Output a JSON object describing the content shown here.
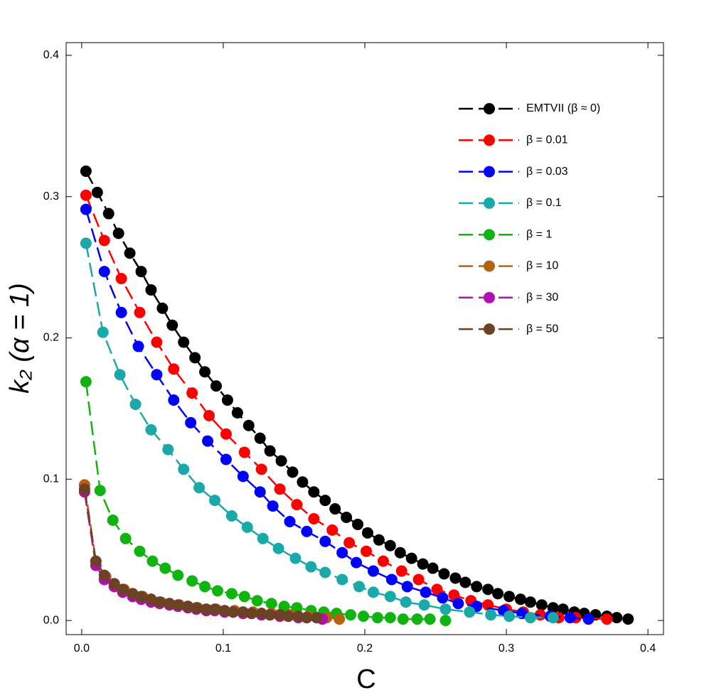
{
  "chart_data": {
    "type": "line",
    "xlabel": "C",
    "ylabel": "k₂ (α = 1)",
    "xlim": [
      -0.011,
      0.411
    ],
    "ylim": [
      -0.01,
      0.409
    ],
    "xticks": [
      {
        "value": 0,
        "label": "0.0"
      },
      0.1,
      0.2,
      0.3,
      0.4
    ],
    "yticks": [
      {
        "value": 0,
        "label": "0.0"
      },
      0.1,
      0.2,
      0.3,
      0.4
    ],
    "legend": "upper right",
    "series": [
      {
        "name": "EMTVII (β ≈ 0)",
        "color": "#000000",
        "x": [
          0.003,
          0.011,
          0.019,
          0.026,
          0.034,
          0.042,
          0.049,
          0.057,
          0.064,
          0.072,
          0.08,
          0.087,
          0.095,
          0.103,
          0.11,
          0.118,
          0.126,
          0.133,
          0.141,
          0.149,
          0.156,
          0.164,
          0.172,
          0.179,
          0.187,
          0.195,
          0.202,
          0.21,
          0.218,
          0.225,
          0.233,
          0.241,
          0.248,
          0.256,
          0.264,
          0.271,
          0.279,
          0.287,
          0.294,
          0.302,
          0.31,
          0.317,
          0.325,
          0.333,
          0.34,
          0.348,
          0.355,
          0.363,
          0.371,
          0.378,
          0.386
        ],
        "values": [
          0.318,
          0.303,
          0.288,
          0.274,
          0.26,
          0.247,
          0.234,
          0.221,
          0.209,
          0.197,
          0.186,
          0.176,
          0.166,
          0.156,
          0.147,
          0.138,
          0.129,
          0.12,
          0.113,
          0.105,
          0.098,
          0.091,
          0.085,
          0.079,
          0.073,
          0.068,
          0.062,
          0.057,
          0.053,
          0.048,
          0.044,
          0.04,
          0.037,
          0.033,
          0.03,
          0.027,
          0.024,
          0.022,
          0.019,
          0.017,
          0.015,
          0.013,
          0.011,
          0.009,
          0.008,
          0.006,
          0.005,
          0.004,
          0.003,
          0.002,
          0.001
        ]
      },
      {
        "name": "β = 0.01",
        "color": "#ff0000",
        "x": [
          0.003,
          0.016,
          0.028,
          0.041,
          0.053,
          0.065,
          0.078,
          0.09,
          0.102,
          0.115,
          0.127,
          0.14,
          0.152,
          0.164,
          0.177,
          0.189,
          0.201,
          0.213,
          0.226,
          0.238,
          0.251,
          0.263,
          0.275,
          0.287,
          0.3,
          0.312,
          0.324,
          0.337,
          0.349,
          0.371
        ],
        "values": [
          0.301,
          0.269,
          0.242,
          0.218,
          0.197,
          0.178,
          0.161,
          0.145,
          0.132,
          0.119,
          0.107,
          0.093,
          0.082,
          0.072,
          0.064,
          0.055,
          0.049,
          0.042,
          0.035,
          0.029,
          0.022,
          0.018,
          0.014,
          0.011,
          0.008,
          0.006,
          0.004,
          0.002,
          0.002,
          0.001
        ]
      },
      {
        "name": "β = 0.03",
        "color": "#0000ff",
        "x": [
          0.003,
          0.016,
          0.028,
          0.04,
          0.053,
          0.065,
          0.077,
          0.089,
          0.102,
          0.114,
          0.126,
          0.135,
          0.147,
          0.159,
          0.172,
          0.184,
          0.194,
          0.206,
          0.219,
          0.23,
          0.243,
          0.255,
          0.266,
          0.279,
          0.298,
          0.311,
          0.331,
          0.345,
          0.358
        ],
        "values": [
          0.291,
          0.247,
          0.218,
          0.194,
          0.174,
          0.156,
          0.14,
          0.127,
          0.114,
          0.102,
          0.091,
          0.081,
          0.07,
          0.063,
          0.056,
          0.048,
          0.041,
          0.035,
          0.029,
          0.024,
          0.02,
          0.016,
          0.012,
          0.01,
          0.007,
          0.005,
          0.003,
          0.002,
          0.001
        ]
      },
      {
        "name": "β = 0.1",
        "color": "#1aa8a8",
        "x": [
          0.003,
          0.015,
          0.027,
          0.038,
          0.049,
          0.061,
          0.072,
          0.083,
          0.094,
          0.106,
          0.117,
          0.128,
          0.139,
          0.151,
          0.162,
          0.172,
          0.184,
          0.196,
          0.206,
          0.218,
          0.229,
          0.242,
          0.257,
          0.274,
          0.289,
          0.302,
          0.317,
          0.333
        ],
        "values": [
          0.267,
          0.204,
          0.174,
          0.153,
          0.135,
          0.121,
          0.107,
          0.094,
          0.085,
          0.074,
          0.066,
          0.058,
          0.051,
          0.044,
          0.038,
          0.034,
          0.029,
          0.024,
          0.02,
          0.017,
          0.013,
          0.011,
          0.008,
          0.006,
          0.004,
          0.003,
          0.002,
          0.002
        ]
      },
      {
        "name": "β = 1",
        "color": "#11b311",
        "x": [
          0.003,
          0.013,
          0.022,
          0.031,
          0.041,
          0.05,
          0.059,
          0.068,
          0.078,
          0.087,
          0.096,
          0.106,
          0.115,
          0.124,
          0.134,
          0.143,
          0.152,
          0.162,
          0.171,
          0.18,
          0.19,
          0.199,
          0.209,
          0.218,
          0.227,
          0.237,
          0.246,
          0.257
        ],
        "values": [
          0.169,
          0.092,
          0.071,
          0.058,
          0.049,
          0.042,
          0.037,
          0.032,
          0.028,
          0.024,
          0.021,
          0.019,
          0.017,
          0.014,
          0.012,
          0.01,
          0.009,
          0.007,
          0.006,
          0.005,
          0.004,
          0.003,
          0.002,
          0.002,
          0.001,
          0.001,
          0.001,
          0.0
        ]
      },
      {
        "name": "β = 10",
        "color": "#b5620e",
        "x": [
          0.002,
          0.01,
          0.017,
          0.023,
          0.03,
          0.036,
          0.043,
          0.049,
          0.056,
          0.062,
          0.069,
          0.075,
          0.082,
          0.088,
          0.095,
          0.101,
          0.108,
          0.114,
          0.121,
          0.127,
          0.134,
          0.14,
          0.147,
          0.153,
          0.16,
          0.166,
          0.173,
          0.182
        ],
        "values": [
          0.096,
          0.042,
          0.031,
          0.026,
          0.022,
          0.019,
          0.017,
          0.015,
          0.013,
          0.012,
          0.011,
          0.01,
          0.009,
          0.008,
          0.008,
          0.007,
          0.007,
          0.006,
          0.006,
          0.005,
          0.005,
          0.004,
          0.004,
          0.003,
          0.003,
          0.002,
          0.002,
          0.001
        ]
      },
      {
        "name": "β = 30",
        "color": "#b010b0",
        "x": [
          0.002,
          0.01,
          0.016,
          0.023,
          0.029,
          0.036,
          0.042,
          0.049,
          0.055,
          0.062,
          0.068,
          0.075,
          0.081,
          0.088,
          0.094,
          0.101,
          0.107,
          0.114,
          0.12,
          0.127,
          0.133,
          0.14,
          0.146,
          0.153,
          0.159,
          0.166,
          0.17
        ],
        "values": [
          0.091,
          0.039,
          0.029,
          0.024,
          0.02,
          0.017,
          0.015,
          0.013,
          0.012,
          0.011,
          0.01,
          0.009,
          0.008,
          0.007,
          0.007,
          0.006,
          0.006,
          0.005,
          0.005,
          0.004,
          0.004,
          0.003,
          0.003,
          0.002,
          0.002,
          0.002,
          0.001
        ]
      },
      {
        "name": "β = 50",
        "color": "#6b4226",
        "x": [
          0.002,
          0.01,
          0.016,
          0.023,
          0.029,
          0.036,
          0.042,
          0.049,
          0.055,
          0.062,
          0.068,
          0.075,
          0.081,
          0.088,
          0.094,
          0.101,
          0.107,
          0.114,
          0.12,
          0.127,
          0.133,
          0.14,
          0.146,
          0.153,
          0.159,
          0.166
        ],
        "values": [
          0.093,
          0.042,
          0.032,
          0.026,
          0.022,
          0.019,
          0.017,
          0.015,
          0.013,
          0.012,
          0.011,
          0.01,
          0.009,
          0.008,
          0.008,
          0.007,
          0.006,
          0.006,
          0.005,
          0.005,
          0.004,
          0.004,
          0.003,
          0.003,
          0.002,
          0.002
        ]
      }
    ]
  }
}
